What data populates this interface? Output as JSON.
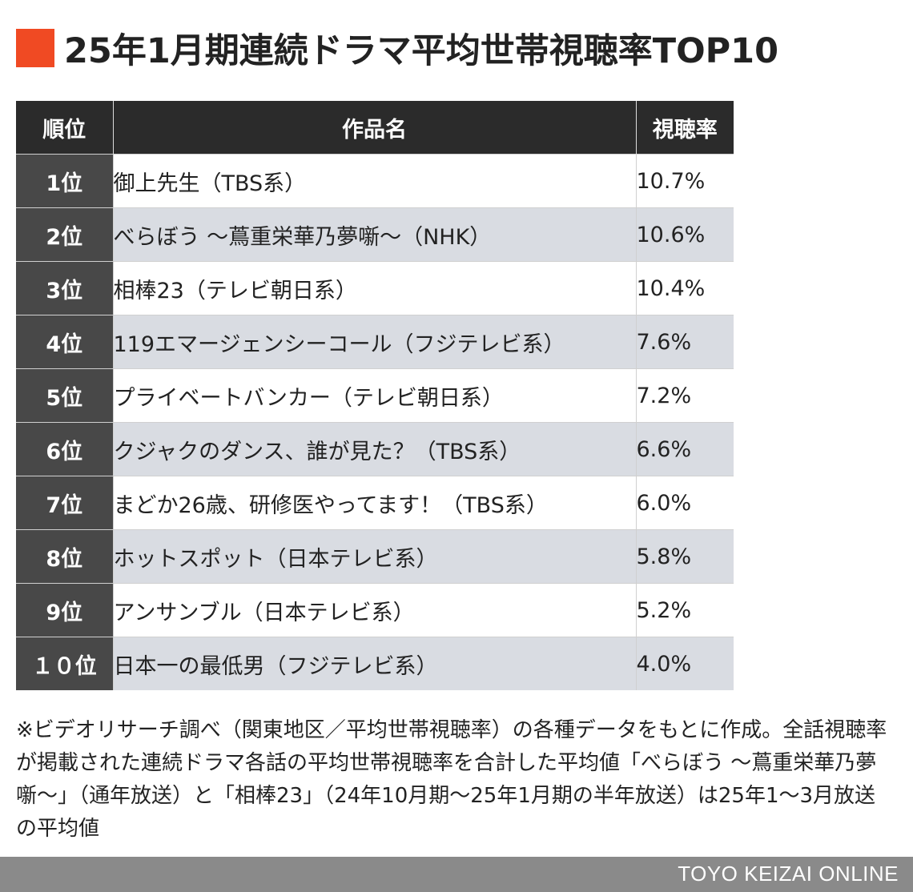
{
  "title": "25年1月期連続ドラマ平均世帯視聴率TOP10",
  "accent_color": "#f04a23",
  "chart_data": {
    "type": "table",
    "columns": [
      "順位",
      "作品名",
      "視聴率"
    ],
    "rows": [
      {
        "rank": "1位",
        "title": "御上先生（TBS系）",
        "rate": "10.7%"
      },
      {
        "rank": "2位",
        "title": "べらぼう ～蔦重栄華乃夢噺～（NHK）",
        "rate": "10.6%"
      },
      {
        "rank": "3位",
        "title": "相棒23（テレビ朝日系）",
        "rate": "10.4%"
      },
      {
        "rank": "4位",
        "title": "119エマージェンシーコール（フジテレビ系）",
        "rate": "7.6%"
      },
      {
        "rank": "5位",
        "title": "プライベートバンカー（テレビ朝日系）",
        "rate": "7.2%"
      },
      {
        "rank": "6位",
        "title": "クジャクのダンス、誰が見た？（TBS系）",
        "rate": "6.6%"
      },
      {
        "rank": "7位",
        "title": "まどか26歳、研修医やってます！（TBS系）",
        "rate": "6.0%"
      },
      {
        "rank": "8位",
        "title": "ホットスポット（日本テレビ系）",
        "rate": "5.8%"
      },
      {
        "rank": "9位",
        "title": "アンサンブル（日本テレビ系）",
        "rate": "5.2%"
      },
      {
        "rank": "１０位",
        "title": "日本一の最低男（フジテレビ系）",
        "rate": "4.0%"
      }
    ]
  },
  "note": "※ビデオリサーチ調べ（関東地区／平均世帯視聴率）の各種データをもとに作成。全話視聴率が掲載された連続ドラマ各話の平均世帯視聴率を合計した平均値「べらぼう ～蔦重栄華乃夢噺～」（通年放送）と「相棒23」（24年10月期～25年1月期の半年放送）は25年1～3月放送の平均値",
  "footer": "TOYO KEIZAI ONLINE"
}
